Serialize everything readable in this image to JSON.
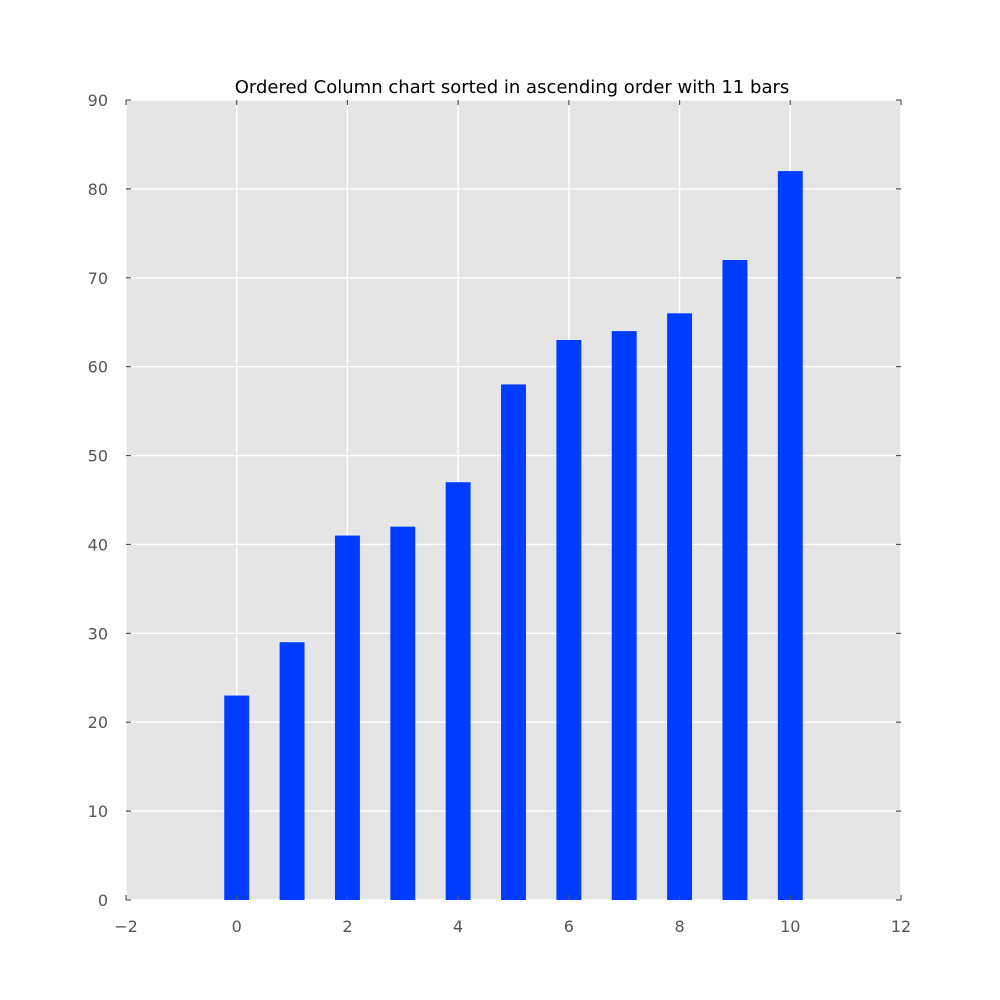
{
  "chart_data": {
    "type": "bar",
    "title": "Ordered Column chart sorted in ascending order with 11 bars",
    "xlabel": "",
    "ylabel": "",
    "x": [
      0,
      1,
      2,
      3,
      4,
      5,
      6,
      7,
      8,
      9,
      10
    ],
    "values": [
      23,
      29,
      41,
      42,
      47,
      58,
      63,
      64,
      66,
      72,
      82
    ],
    "xlim": [
      -2,
      12
    ],
    "ylim": [
      0,
      90
    ],
    "xticks": [
      -2,
      0,
      2,
      4,
      6,
      8,
      10,
      12
    ],
    "xtick_labels": [
      "−2",
      "0",
      "2",
      "4",
      "6",
      "8",
      "10",
      "12"
    ],
    "yticks": [
      0,
      10,
      20,
      30,
      40,
      50,
      60,
      70,
      80,
      90
    ],
    "ytick_labels": [
      "0",
      "10",
      "20",
      "30",
      "40",
      "50",
      "60",
      "70",
      "80",
      "90"
    ],
    "bar_width": 0.45,
    "grid": true,
    "colors": {
      "bar": "#003cff",
      "plot_background": "#e5e5e5",
      "grid": "#ffffff"
    }
  }
}
